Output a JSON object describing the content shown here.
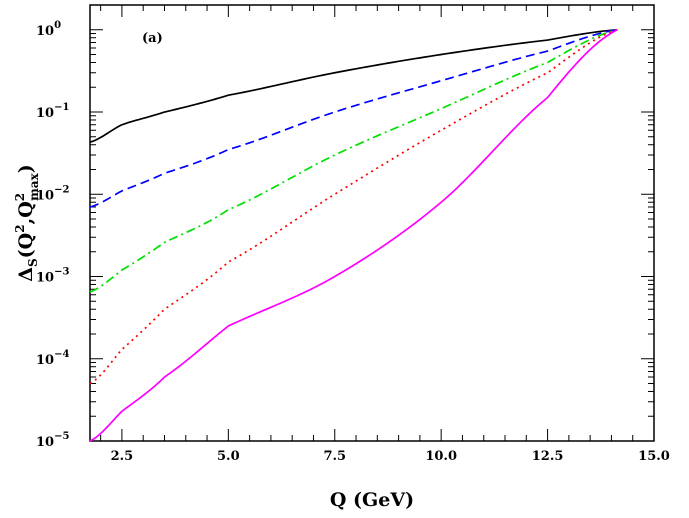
{
  "chart_data": {
    "type": "line",
    "title": "",
    "annotation": "(a)",
    "xlabel": "Q (GeV)",
    "ylabel": {
      "base": "Δ",
      "sub1": "S",
      "open": "(Q",
      "sup1": "2",
      "comma": ",Q",
      "sup2": "2",
      "sub2": "max",
      "close": ")"
    },
    "xlim": [
      1.75,
      15.0
    ],
    "ylim": [
      1e-05,
      2.0
    ],
    "yscale": "log",
    "x_ticks": [
      2.5,
      5.0,
      7.5,
      10.0,
      12.5,
      15.0
    ],
    "x_tick_labels": [
      "2.5",
      "5.0",
      "7.5",
      "10.0",
      "12.5",
      "15.0"
    ],
    "y_ticks": [
      {
        "value": 1e-05,
        "base": "10",
        "exp": "−5"
      },
      {
        "value": 0.0001,
        "base": "10",
        "exp": "−4"
      },
      {
        "value": 0.001,
        "base": "10",
        "exp": "−3"
      },
      {
        "value": 0.01,
        "base": "10",
        "exp": "−2"
      },
      {
        "value": 0.1,
        "base": "10",
        "exp": "−1"
      },
      {
        "value": 1,
        "base": "10",
        "exp": "0"
      }
    ],
    "grid": false,
    "series": [
      {
        "color": "#000000",
        "dash": "",
        "x": [
          1.75,
          2.5,
          3.5,
          5.0,
          7.5,
          10.0,
          12.5,
          14.14
        ],
        "y": [
          0.043,
          0.07,
          0.1,
          0.16,
          0.3,
          0.5,
          0.75,
          1.0
        ]
      },
      {
        "color": "#0000ff",
        "dash": "9,5",
        "x": [
          1.75,
          2.5,
          3.5,
          5.0,
          7.5,
          10.0,
          12.5,
          14.14
        ],
        "y": [
          0.007,
          0.011,
          0.018,
          0.035,
          0.1,
          0.24,
          0.55,
          1.0
        ]
      },
      {
        "color": "#00e000",
        "dash": "9,4,2,4",
        "x": [
          1.75,
          2.5,
          3.5,
          5.0,
          7.5,
          10.0,
          12.5,
          14.14
        ],
        "y": [
          0.00065,
          0.0012,
          0.0026,
          0.0065,
          0.03,
          0.11,
          0.4,
          1.0
        ]
      },
      {
        "color": "#ff0000",
        "dash": "2,4",
        "x": [
          1.75,
          2.5,
          3.5,
          5.0,
          7.5,
          10.0,
          12.5,
          14.14
        ],
        "y": [
          5e-05,
          0.00013,
          0.0004,
          0.0015,
          0.01,
          0.06,
          0.3,
          1.0
        ]
      },
      {
        "color": "#ff00ff",
        "dash": "",
        "x": [
          1.75,
          2.5,
          3.5,
          5.0,
          7.5,
          10.0,
          12.5,
          14.14
        ],
        "y": [
          1e-05,
          2.3e-05,
          6e-05,
          0.00025,
          0.001,
          0.008,
          0.15,
          1.0
        ]
      }
    ]
  }
}
